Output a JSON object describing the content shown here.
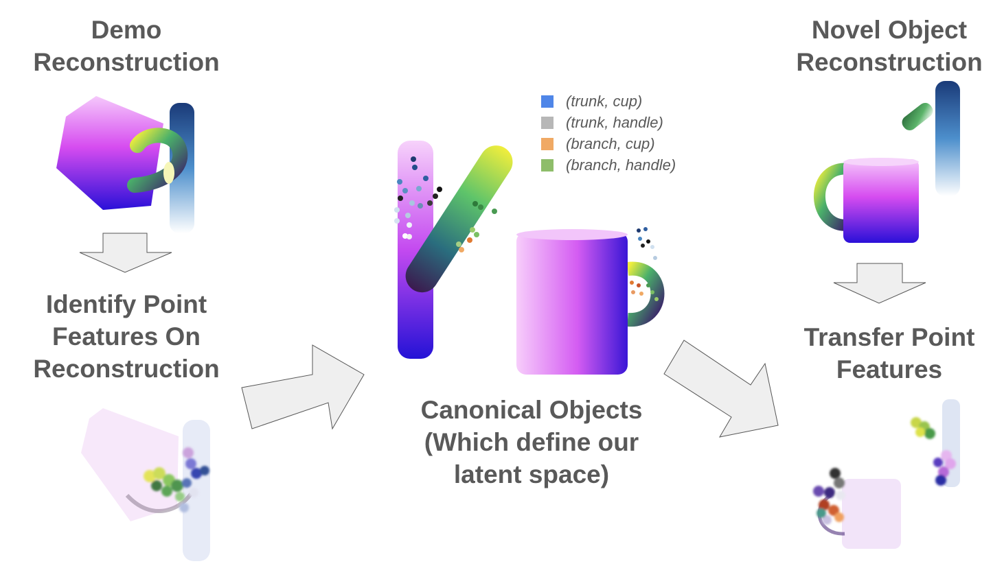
{
  "labels": {
    "demo_reconstruction": [
      "Demo",
      "Reconstruction"
    ],
    "identify_features": [
      "Identify Point",
      "Features On",
      "Reconstruction"
    ],
    "canonical_objects": [
      "Canonical Objects",
      "(Which define our",
      "latent space)"
    ],
    "novel_reconstruction": [
      "Novel Object",
      "Reconstruction"
    ],
    "transfer_features": [
      "Transfer Point",
      "Features"
    ]
  },
  "legend": [
    {
      "label": "(trunk, cup)",
      "color": "#4f86e8"
    },
    {
      "label": "(trunk, handle)",
      "color": "#b7b7b7"
    },
    {
      "label": "(branch, cup)",
      "color": "#f0a964"
    },
    {
      "label": "(branch, handle)",
      "color": "#8ebd6a"
    }
  ],
  "colors": {
    "text": "#595959",
    "arrow_fill": "#efefef",
    "arrow_stroke": "#555555"
  }
}
